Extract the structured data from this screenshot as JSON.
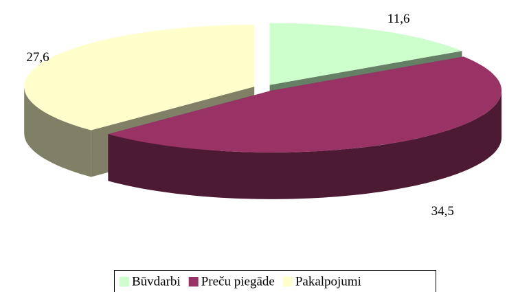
{
  "chart_data": {
    "type": "pie",
    "categories": [
      "Būvdarbi",
      "Preču piegāde",
      "Pakalpojumi"
    ],
    "values": [
      11.6,
      34.5,
      27.6
    ],
    "value_labels": [
      "11,6",
      "34,5",
      "27,6"
    ],
    "colors": [
      "#ccffcc",
      "#993366",
      "#ffffcc"
    ],
    "legend": "bottom"
  }
}
